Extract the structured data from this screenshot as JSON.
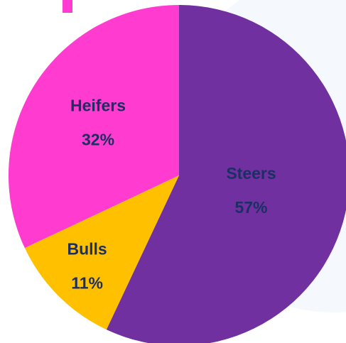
{
  "chart_data": {
    "type": "pie",
    "categories": [
      "Steers",
      "Bulls",
      "Heifers"
    ],
    "values": [
      57,
      11,
      32
    ],
    "value_labels": [
      "57%",
      "11%",
      "32%"
    ],
    "colors": [
      "#7030a0",
      "#ffc000",
      "#ff3ccf"
    ]
  }
}
